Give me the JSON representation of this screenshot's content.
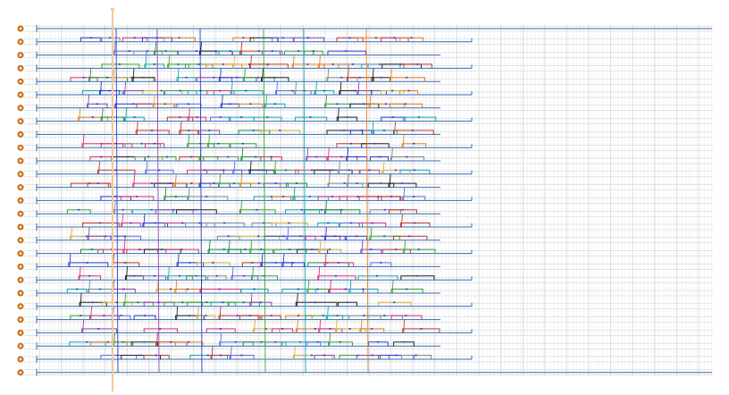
{
  "view": {
    "kind": "pulse-sequence-timeline",
    "channel_count": 27,
    "channel_port_icon": "orange-port-circle-icon",
    "playhead_icon": "playhead-cursor-icon",
    "grid_on": true,
    "colors": {
      "grid_major": "#cdcdcd",
      "grid_minor": "#e6e6e6",
      "channel_line": "#2f6db5",
      "port_fill": "#e38b27",
      "port_ring": "#a8561a",
      "playhead": "#f3c79a",
      "pulse_palette": [
        "#c0392b",
        "#3aa335",
        "#2c3ad0",
        "#8e44ad",
        "#16a7b5",
        "#e67e22",
        "#222222",
        "#d4b23a",
        "#1c8f3a",
        "#e0307a",
        "#7f8c8d",
        "#5b6ee1"
      ]
    }
  },
  "playhead": {
    "label": ""
  }
}
